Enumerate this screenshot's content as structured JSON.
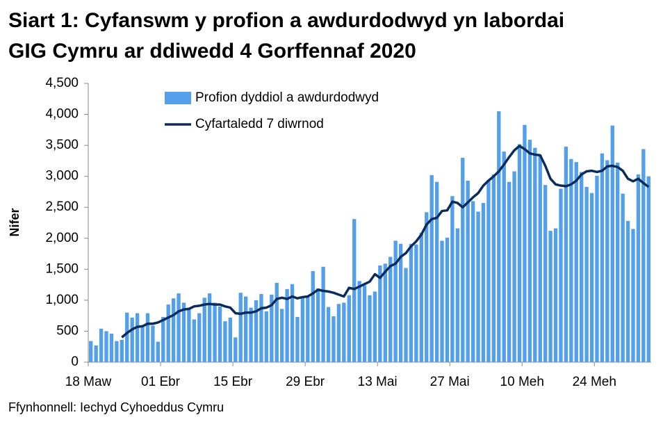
{
  "chart_data": {
    "type": "bar_line",
    "title": "Siart 1: Cyfanswm y profion a awdurdodwyd yn labordai GIG Cymru ar ddiwedd 4 Gorffennaf 2020",
    "y_label": "Nifer",
    "source": "Ffynhonnell: Iechyd Cyhoeddus Cymru",
    "categories": [
      "18 Maw",
      null,
      null,
      null,
      null,
      null,
      null,
      null,
      null,
      null,
      null,
      null,
      null,
      null,
      "01 Ebr",
      null,
      null,
      null,
      null,
      null,
      null,
      null,
      null,
      null,
      null,
      null,
      null,
      null,
      "15 Ebr",
      null,
      null,
      null,
      null,
      null,
      null,
      null,
      null,
      null,
      null,
      null,
      null,
      null,
      "29 Ebr",
      null,
      null,
      null,
      null,
      null,
      null,
      null,
      null,
      null,
      null,
      null,
      null,
      null,
      "13 Mai",
      null,
      null,
      null,
      null,
      null,
      null,
      null,
      null,
      null,
      null,
      null,
      null,
      null,
      "27 Mai",
      null,
      null,
      null,
      null,
      null,
      null,
      null,
      null,
      null,
      null,
      null,
      null,
      null,
      "10 Meh",
      null,
      null,
      null,
      null,
      null,
      null,
      null,
      null,
      null,
      null,
      null,
      null,
      null,
      "24 Meh",
      null,
      null,
      null,
      null,
      null,
      null,
      null,
      null,
      null,
      null
    ],
    "series": [
      {
        "name": "Profion dyddiol a awdurdodwyd",
        "type": "bar",
        "color": "#539fea",
        "values": [
          340,
          270,
          540,
          500,
          460,
          340,
          360,
          800,
          720,
          790,
          580,
          790,
          590,
          330,
          730,
          930,
          1030,
          1110,
          960,
          880,
          690,
          790,
          1040,
          1110,
          960,
          900,
          660,
          720,
          400,
          1120,
          1060,
          880,
          1000,
          1100,
          820,
          1090,
          1280,
          860,
          1180,
          1260,
          730,
          1050,
          1070,
          1470,
          1190,
          1540,
          890,
          740,
          940,
          960,
          1080,
          2310,
          1310,
          1240,
          1080,
          1140,
          1560,
          1590,
          1700,
          1960,
          1910,
          1520,
          1910,
          1900,
          2090,
          2420,
          3020,
          2910,
          1960,
          2010,
          2680,
          2160,
          3300,
          2930,
          2600,
          2430,
          2570,
          2940,
          3030,
          4050,
          3400,
          2910,
          3080,
          3520,
          3830,
          3590,
          3460,
          3340,
          2860,
          2120,
          2160,
          2800,
          3480,
          3280,
          3230,
          3070,
          2830,
          2730,
          3010,
          3370,
          3260,
          3820,
          3220,
          2720,
          2280,
          2150,
          3030,
          3440,
          3000
        ]
      },
      {
        "name": "Cyfartaledd 7 diwrnod",
        "type": "line",
        "color": "#0b2b5c",
        "values": [
          null,
          null,
          null,
          null,
          null,
          null,
          400,
          470,
          530,
          570,
          580,
          620,
          620,
          640,
          680,
          720,
          760,
          820,
          850,
          860,
          900,
          910,
          930,
          940,
          930,
          930,
          900,
          880,
          790,
          780,
          800,
          800,
          820,
          870,
          880,
          920,
          1020,
          1040,
          1020,
          1060,
          1030,
          1050,
          1060,
          1110,
          1170,
          1150,
          1140,
          1120,
          1090,
          1060,
          1200,
          1180,
          1220,
          1260,
          1300,
          1420,
          1360,
          1460,
          1550,
          1590,
          1700,
          1760,
          1870,
          1950,
          2060,
          2220,
          2310,
          2330,
          2440,
          2450,
          2590,
          2570,
          2500,
          2580,
          2660,
          2730,
          2850,
          2930,
          3000,
          3080,
          3190,
          3310,
          3420,
          3490,
          3440,
          3370,
          3350,
          3340,
          3170,
          2960,
          2870,
          2850,
          2840,
          2870,
          2930,
          3030,
          3080,
          3090,
          3070,
          3090,
          3160,
          3170,
          3150,
          3090,
          2960,
          2920,
          2960,
          2890,
          2830
        ]
      }
    ],
    "ylim": [
      0,
      4500
    ],
    "yticks": [
      0,
      500,
      {
        "value": 1000,
        "label": "1,000"
      },
      {
        "value": 1500,
        "label": "1,500"
      },
      {
        "value": 2000,
        "label": "2,000"
      },
      {
        "value": 2500,
        "label": "2,500"
      },
      {
        "value": 3000,
        "label": "3,000"
      },
      {
        "value": 3500,
        "label": "3,500"
      },
      {
        "value": 4000,
        "label": "4,000"
      },
      {
        "value": 4500,
        "label": "4,500"
      }
    ],
    "grid": false,
    "legend": "top-left"
  }
}
